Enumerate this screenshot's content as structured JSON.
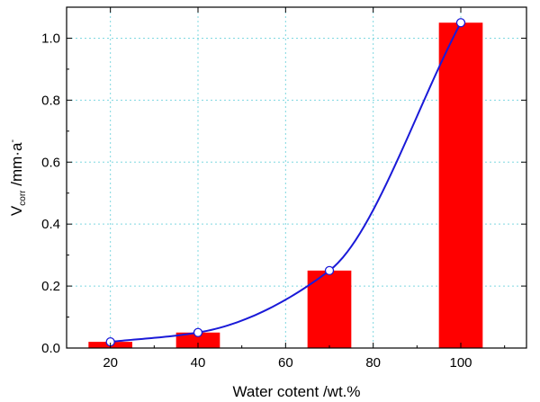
{
  "chart_data": {
    "type": "bar",
    "title": "",
    "xlabel": "Water cotent /wt.%",
    "ylabel": {
      "base": "V",
      "subscript": "corr",
      "rest": " /mm·a",
      "superscript": "-"
    },
    "x": [
      20,
      40,
      70,
      100
    ],
    "values": [
      0.02,
      0.05,
      0.25,
      1.05
    ],
    "xlim": [
      10,
      115
    ],
    "ylim": [
      0,
      1.1
    ],
    "xticks": [
      20,
      40,
      60,
      80,
      100
    ],
    "xtick_labels": [
      "20",
      "40",
      "60",
      "80",
      "100"
    ],
    "yticks": [
      0.0,
      0.2,
      0.4,
      0.6,
      0.8,
      1.0
    ],
    "ytick_labels": [
      "0.0",
      "0.2",
      "0.4",
      "0.6",
      "0.8",
      "1.0"
    ],
    "grid": true,
    "bar_color": "#ff0000",
    "trend_line": {
      "type": "line",
      "smooth": true,
      "color": "#1a1ad8",
      "marker": "open-circle",
      "points": [
        [
          20,
          0.02
        ],
        [
          40,
          0.05
        ],
        [
          70,
          0.25
        ],
        [
          100,
          1.05
        ]
      ]
    },
    "grid_color": "#7fd8e0"
  }
}
